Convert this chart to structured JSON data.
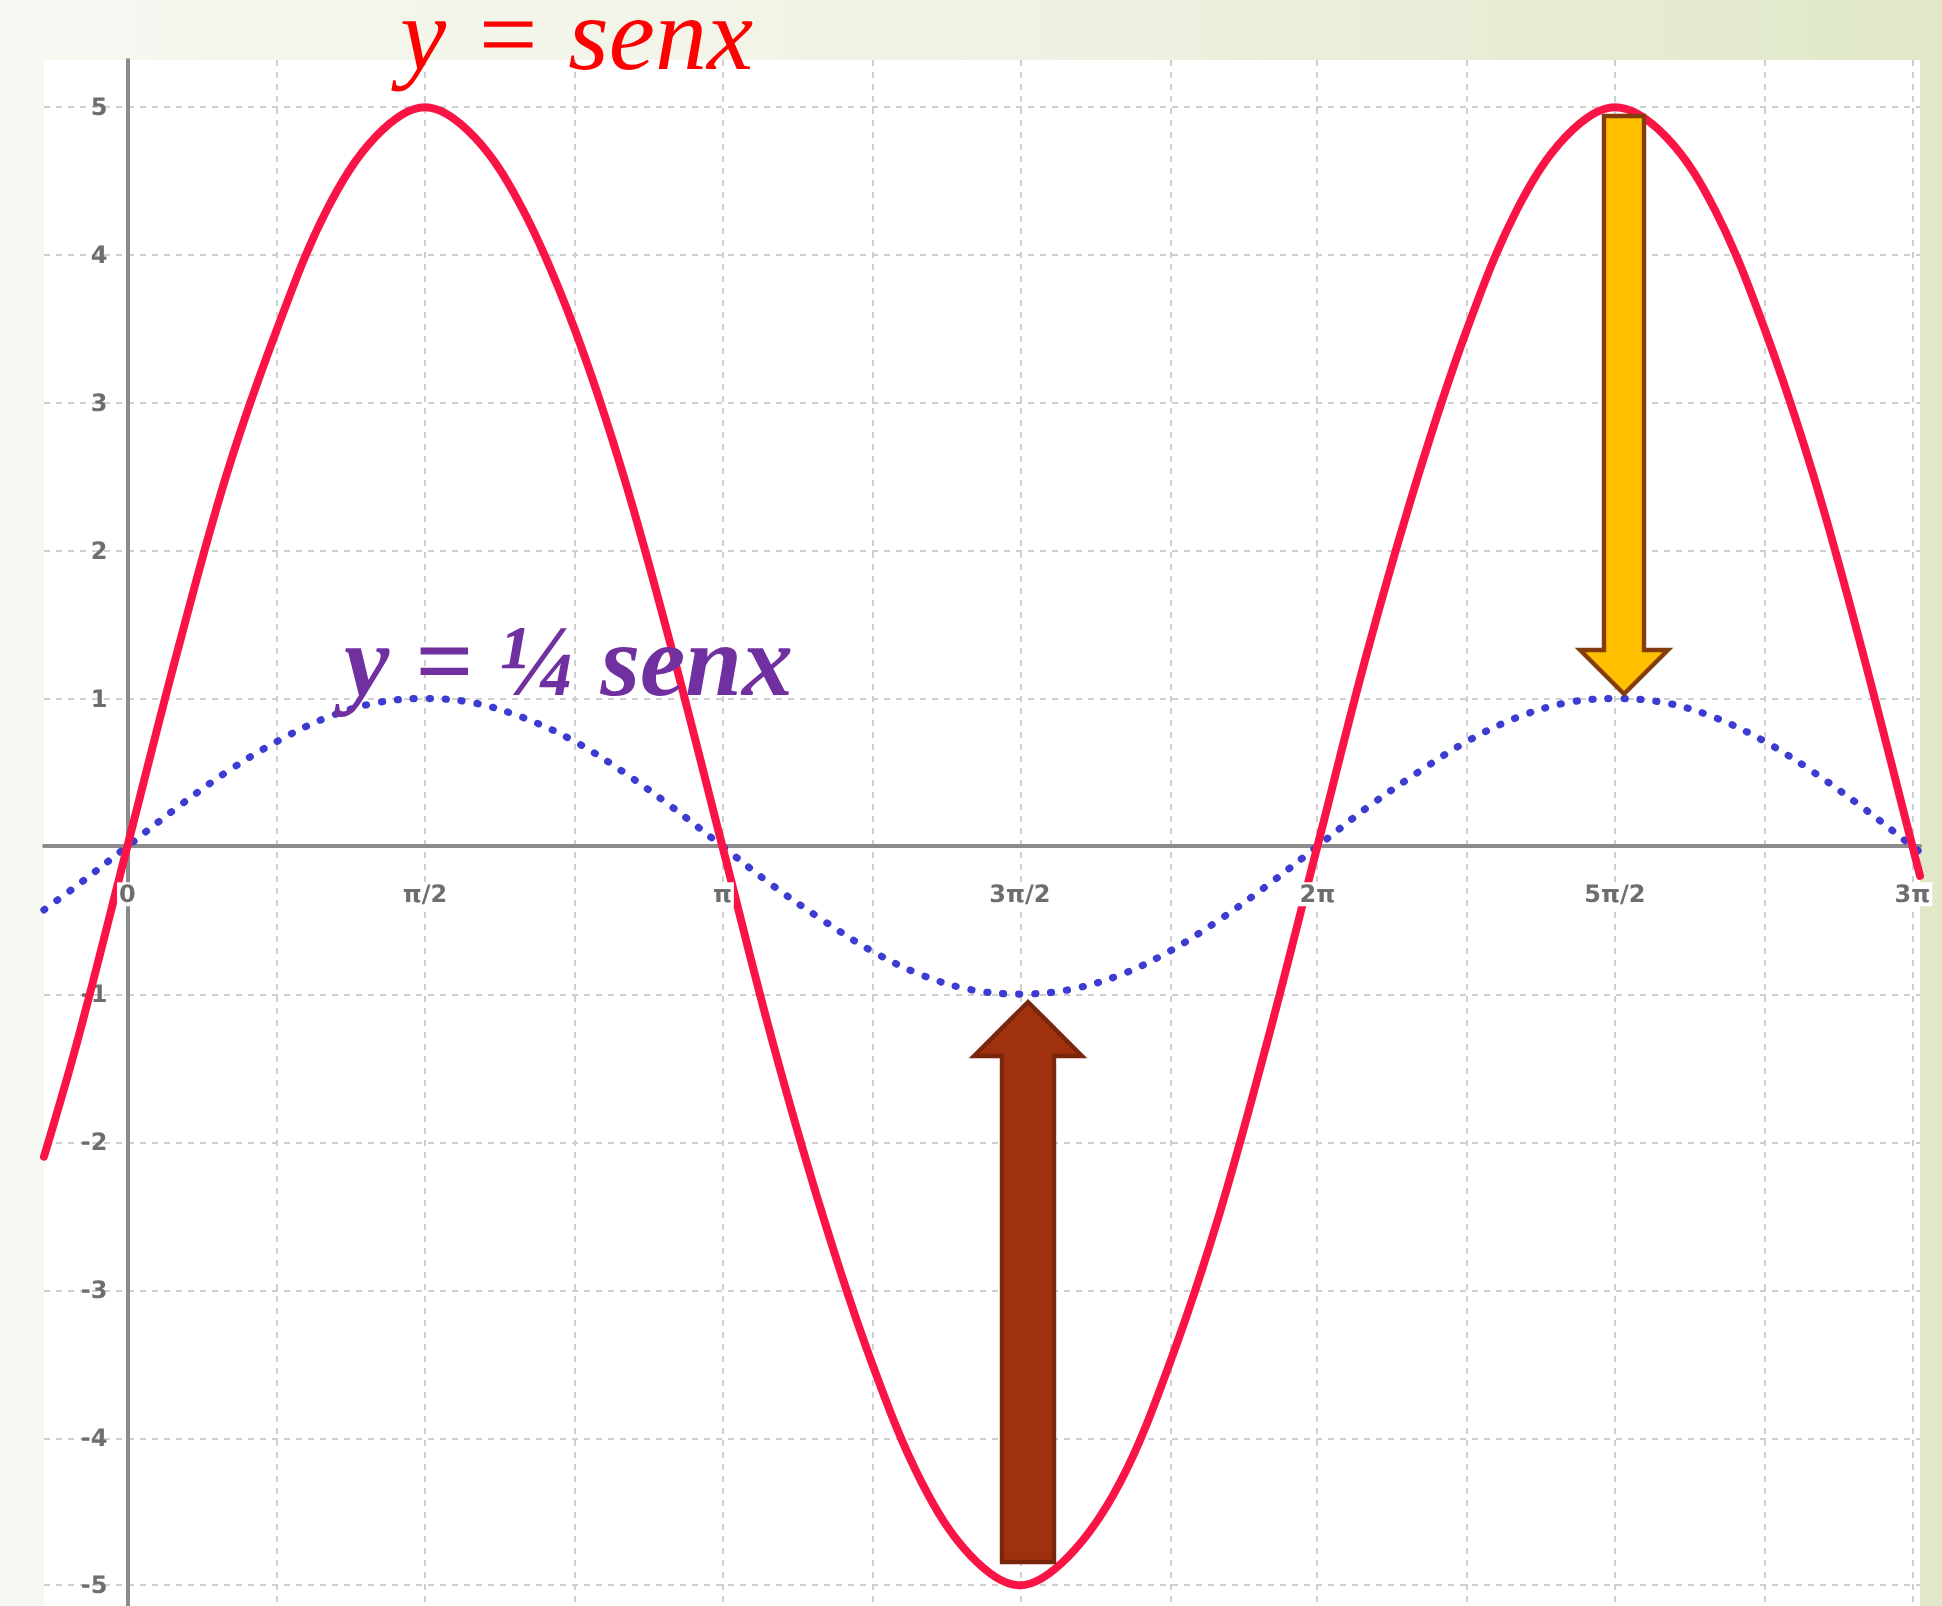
{
  "chart_data": {
    "type": "line",
    "x": [
      -0.44,
      -0.26,
      0,
      0.26,
      0.52,
      0.79,
      1.05,
      1.31,
      1.57,
      1.83,
      2.09,
      2.36,
      2.62,
      2.88,
      3.14,
      3.4,
      3.67,
      3.93,
      4.19,
      4.45,
      4.71,
      4.97,
      5.24,
      5.5,
      5.76,
      6.02,
      6.28,
      6.54,
      6.81,
      7.07,
      7.33,
      7.59,
      7.85,
      8.12,
      8.38,
      8.64,
      8.9,
      9.16,
      9.42,
      9.46
    ],
    "series": [
      {
        "name": "y = senx",
        "color": "#fa1446",
        "line_style": "solid",
        "values": [
          -2.1,
          -1.3,
          0,
          1.3,
          2.5,
          3.5,
          4.3,
          4.8,
          5,
          4.8,
          4.3,
          3.5,
          2.5,
          1.3,
          0,
          -1.3,
          -2.5,
          -3.5,
          -4.3,
          -4.8,
          -5,
          -4.8,
          -4.3,
          -3.5,
          -2.5,
          -1.3,
          0,
          1.3,
          2.5,
          3.5,
          4.3,
          4.8,
          5,
          4.8,
          4.3,
          3.5,
          2.5,
          1.3,
          0,
          -0.2
        ]
      },
      {
        "name": "y = ¼ senx",
        "color": "#3c3cd2",
        "line_style": "dotted",
        "values": [
          -0.43,
          -0.26,
          0,
          0.26,
          0.5,
          0.71,
          0.87,
          0.97,
          1,
          0.97,
          0.87,
          0.71,
          0.5,
          0.26,
          0,
          -0.26,
          -0.5,
          -0.71,
          -0.87,
          -0.97,
          -1,
          -0.97,
          -0.87,
          -0.71,
          -0.5,
          -0.26,
          0,
          0.26,
          0.5,
          0.71,
          0.87,
          0.97,
          1,
          0.97,
          0.87,
          0.71,
          0.5,
          0.26,
          0,
          -0.04
        ]
      }
    ],
    "xlim": [
      -0.44,
      9.46
    ],
    "ylim": [
      -5.14,
      5.32
    ],
    "xticks": [
      {
        "value": 0,
        "label": "0"
      },
      {
        "value": 0.79,
        "label": null
      },
      {
        "value": 1.57,
        "label": "π/2"
      },
      {
        "value": 2.36,
        "label": null
      },
      {
        "value": 3.14,
        "label": "π"
      },
      {
        "value": 3.93,
        "label": null
      },
      {
        "value": 4.71,
        "label": "3π/2"
      },
      {
        "value": 5.5,
        "label": null
      },
      {
        "value": 6.28,
        "label": "2π"
      },
      {
        "value": 7.07,
        "label": null
      },
      {
        "value": 7.85,
        "label": "5π/2"
      },
      {
        "value": 8.64,
        "label": null
      },
      {
        "value": 9.42,
        "label": "3π"
      }
    ],
    "yticks": [
      -5,
      -4,
      -3,
      -2,
      -1,
      {
        "value": 0,
        "label": null
      },
      1,
      2,
      3,
      4,
      5
    ],
    "grid": true,
    "marker": "none"
  }
}
